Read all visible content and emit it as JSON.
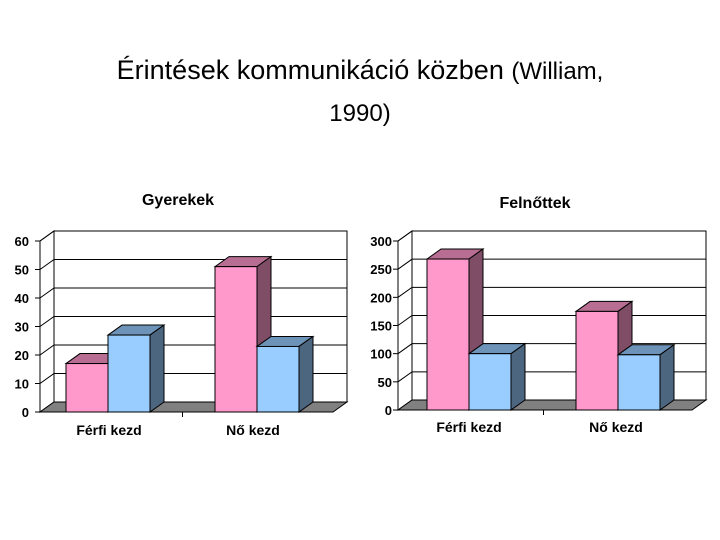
{
  "slide": {
    "title_main": "Érintések kommunikáció közben",
    "title_sub_1": "(William,",
    "title_sub_2": "1990)"
  },
  "colors": {
    "pink": "#ff99cc",
    "blue": "#99ccff",
    "floor": "#808080"
  },
  "chart_data": [
    {
      "type": "bar",
      "title": "Gyerekek",
      "categories": [
        "Férfi kezd",
        "Nő kezd"
      ],
      "series": [
        {
          "values": [
            17,
            51
          ]
        },
        {
          "values": [
            27,
            23
          ]
        }
      ],
      "ylim": [
        0,
        60
      ],
      "yticks": [
        "0",
        "10",
        "20",
        "30",
        "40",
        "50",
        "60"
      ],
      "grid": true,
      "legend": "none"
    },
    {
      "type": "bar",
      "title": "Felnőttek",
      "categories": [
        "Férfi kezd",
        "Nő kezd"
      ],
      "series": [
        {
          "values": [
            268,
            175
          ]
        },
        {
          "values": [
            100,
            98
          ]
        }
      ],
      "ylim": [
        0,
        300
      ],
      "yticks": [
        "0",
        "50",
        "100",
        "150",
        "200",
        "250",
        "300"
      ],
      "grid": true,
      "legend": "none"
    }
  ]
}
